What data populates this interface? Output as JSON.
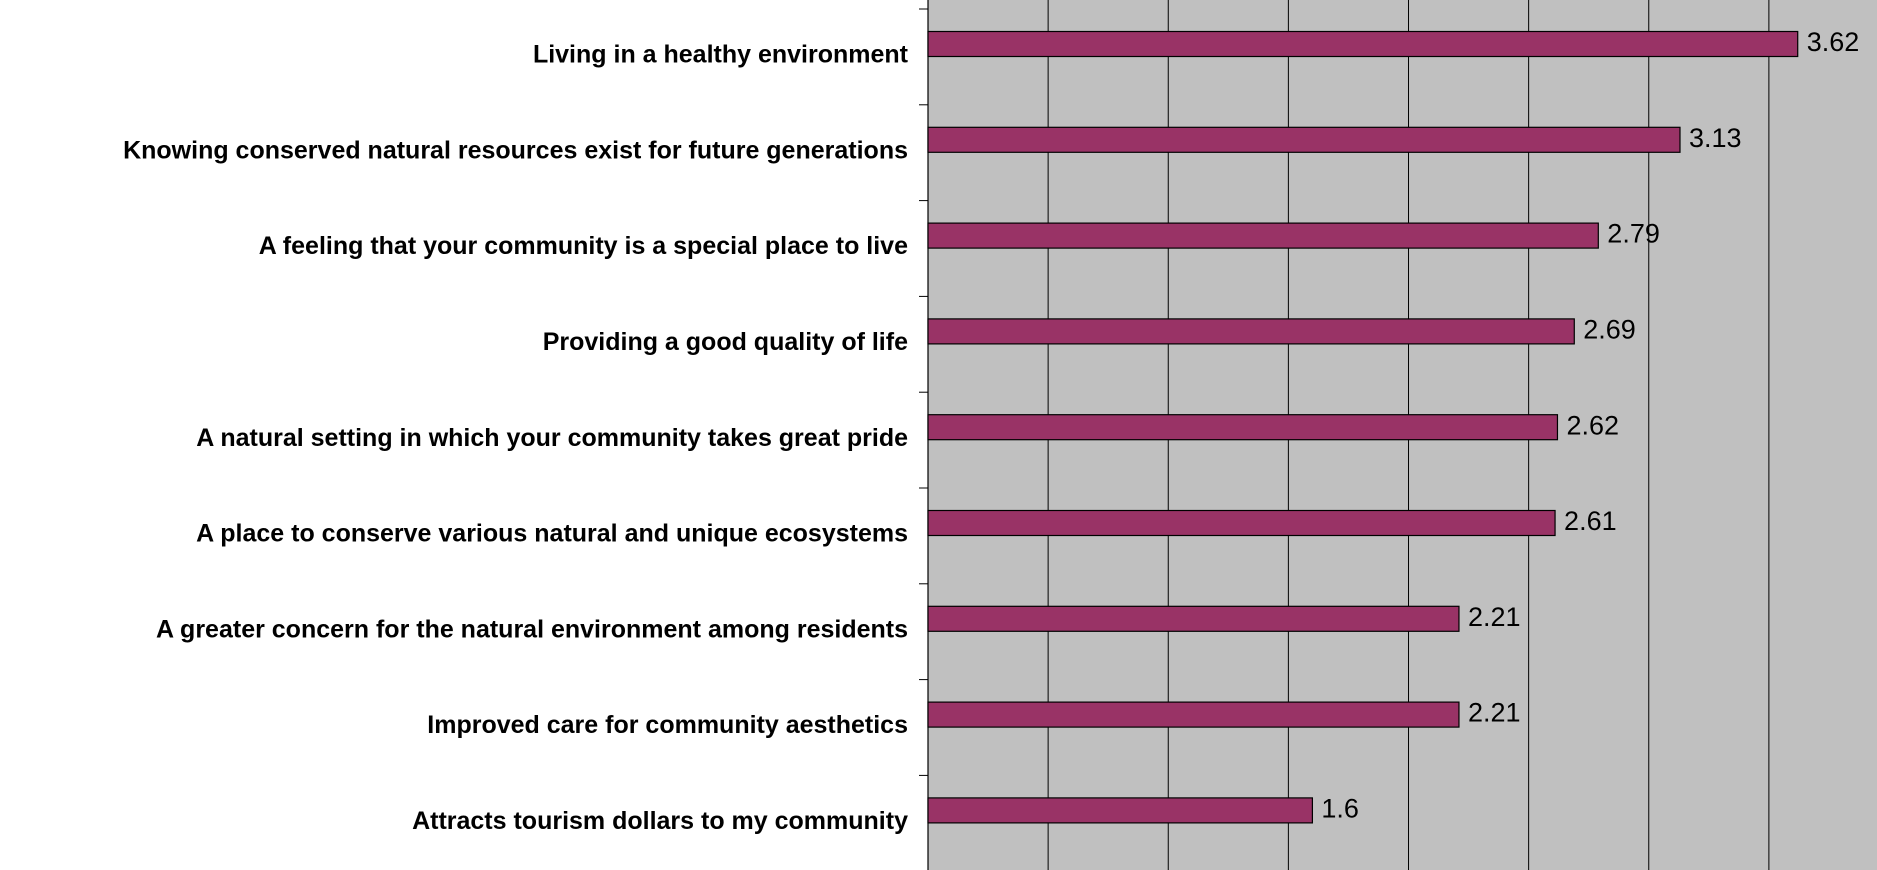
{
  "chart_data": {
    "type": "hbar",
    "categories": [
      "Living in a healthy environment",
      "Knowing conserved natural resources exist for future generations",
      "A feeling that your community is a special place to live",
      "Providing a good quality of life",
      "A natural setting in which your community takes great pride",
      "A place to conserve various natural and unique ecosystems",
      "A greater concern for the natural environment among residents",
      "Improved care for community aesthetics",
      "Attracts tourism dollars to my community"
    ],
    "values": [
      3.62,
      3.13,
      2.79,
      2.69,
      2.62,
      2.61,
      2.21,
      2.21,
      1.6
    ],
    "color": "#993366",
    "xlim": [
      0,
      3.95
    ],
    "xticks": [
      0,
      0.5,
      1,
      1.5,
      2,
      2.5,
      3,
      3.5
    ],
    "grid": true
  }
}
